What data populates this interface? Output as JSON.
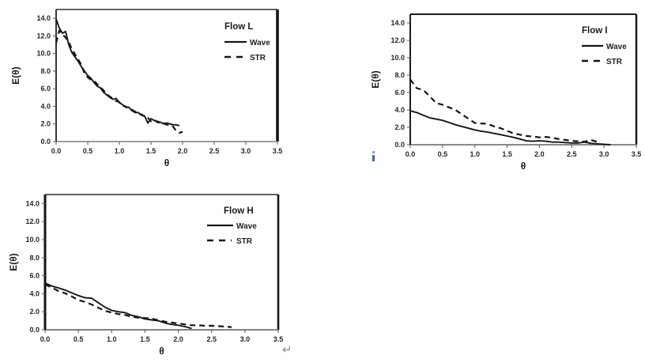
{
  "page": {
    "background": "#ffffff",
    "line_color": "#161616",
    "tick_text_color": "#262626"
  },
  "marks": {
    "line_break_symbol": "↵"
  },
  "chart_data": [
    {
      "type": "line",
      "title": "Flow L",
      "xlabel": "θ",
      "ylabel": "E(θ)",
      "xlim": [
        0,
        3.5
      ],
      "ylim": [
        0,
        15
      ],
      "grid": false,
      "legend_position": "top-right-inside",
      "x_tick_labels": [
        "0.0",
        "0.5",
        "1.0",
        "1.5",
        "2.0",
        "2.5",
        "3.0",
        "3.5"
      ],
      "y_tick_labels": [
        "0.0",
        "2.0",
        "4.0",
        "6.0",
        "8.0",
        "10.0",
        "12.0",
        "14.0"
      ],
      "series": [
        {
          "name": "Wave",
          "style": "solid",
          "x": [
            0,
            0.05,
            0.1,
            0.15,
            0.2,
            0.25,
            0.3,
            0.35,
            0.4,
            0.45,
            0.5,
            0.55,
            0.6,
            0.65,
            0.7,
            0.75,
            0.8,
            0.85,
            0.9,
            0.95,
            1.0,
            1.05,
            1.1,
            1.15,
            1.2,
            1.25,
            1.3,
            1.35,
            1.4,
            1.45,
            1.5,
            1.55,
            1.6,
            1.65,
            1.7,
            1.75,
            1.8,
            1.85,
            1.9,
            1.95
          ],
          "values": [
            13.9,
            12.9,
            12.3,
            12.5,
            11.0,
            10.1,
            9.6,
            9.1,
            8.5,
            8.0,
            7.5,
            7.2,
            6.7,
            6.3,
            6.1,
            5.6,
            5.3,
            5.0,
            4.8,
            4.9,
            4.4,
            4.2,
            3.9,
            3.9,
            3.5,
            3.3,
            3.3,
            3.0,
            2.9,
            2.1,
            2.6,
            2.4,
            2.3,
            2.2,
            2.0,
            2.1,
            2.0,
            1.9,
            1.9,
            1.8
          ]
        },
        {
          "name": "STR",
          "style": "dashed",
          "x": [
            0,
            0.05,
            0.1,
            0.15,
            0.2,
            0.25,
            0.3,
            0.35,
            0.4,
            0.45,
            0.5,
            0.55,
            0.6,
            0.65,
            0.7,
            0.75,
            0.8,
            0.85,
            0.9,
            0.95,
            1.0,
            1.05,
            1.1,
            1.15,
            1.2,
            1.25,
            1.3,
            1.35,
            1.4,
            1.45,
            1.5,
            1.55,
            1.6,
            1.65,
            1.7,
            1.75,
            1.8,
            1.85,
            1.9,
            1.95,
            2.0
          ],
          "values": [
            11.2,
            12.6,
            12.2,
            11.8,
            11.3,
            10.5,
            9.9,
            9.3,
            8.7,
            7.7,
            7.3,
            7.0,
            6.9,
            6.5,
            6.2,
            5.8,
            5.4,
            5.1,
            4.9,
            4.6,
            4.5,
            4.1,
            4.0,
            3.7,
            3.6,
            3.4,
            3.1,
            3.1,
            2.8,
            2.7,
            2.3,
            2.5,
            2.2,
            2.1,
            2.1,
            1.9,
            1.9,
            1.7,
            1.2,
            1.0,
            1.1
          ]
        }
      ]
    },
    {
      "type": "line",
      "title": "Flow I",
      "xlabel": "θ",
      "ylabel": "E(θ)",
      "xlim": [
        0,
        3.5
      ],
      "ylim": [
        0,
        15
      ],
      "grid": false,
      "legend_position": "top-right-inside",
      "x_tick_labels": [
        "0.0",
        "0.5",
        "1.0",
        "1.5",
        "2.0",
        "2.5",
        "3.0",
        "3.5"
      ],
      "y_tick_labels": [
        "0.0",
        "2.0",
        "4.0",
        "6.0",
        "8.0",
        "10.0",
        "12.0",
        "14.0"
      ],
      "series": [
        {
          "name": "Wave",
          "style": "solid",
          "x": [
            0,
            0.1,
            0.2,
            0.3,
            0.4,
            0.5,
            0.6,
            0.7,
            0.8,
            0.9,
            1.0,
            1.1,
            1.2,
            1.3,
            1.4,
            1.5,
            1.6,
            1.7,
            1.8,
            1.9,
            2.0,
            2.1,
            2.2,
            2.3,
            2.4,
            2.5,
            2.6,
            2.7,
            2.8,
            2.9,
            3.0,
            3.1
          ],
          "values": [
            3.9,
            3.7,
            3.4,
            3.1,
            2.95,
            2.8,
            2.55,
            2.3,
            2.1,
            1.9,
            1.7,
            1.55,
            1.45,
            1.3,
            1.15,
            1.0,
            0.85,
            0.65,
            0.45,
            0.4,
            0.45,
            0.4,
            0.3,
            0.3,
            0.25,
            0.2,
            0.2,
            0.3,
            0.15,
            0.1,
            0.05,
            0.0
          ]
        },
        {
          "name": "STR",
          "style": "dashed",
          "x": [
            0,
            0.1,
            0.2,
            0.3,
            0.4,
            0.5,
            0.6,
            0.7,
            0.8,
            0.9,
            1.0,
            1.1,
            1.2,
            1.3,
            1.4,
            1.5,
            1.6,
            1.7,
            1.8,
            1.9,
            2.0,
            2.1,
            2.2,
            2.3,
            2.4,
            2.5,
            2.6,
            2.7,
            2.8,
            2.9
          ],
          "values": [
            7.5,
            6.5,
            6.3,
            5.6,
            4.8,
            4.6,
            4.3,
            4.0,
            3.5,
            3.0,
            2.5,
            2.45,
            2.4,
            2.1,
            1.9,
            1.6,
            1.3,
            1.15,
            1.0,
            0.95,
            0.85,
            0.9,
            0.8,
            0.65,
            0.55,
            0.45,
            0.4,
            0.35,
            0.55,
            0.3
          ]
        }
      ]
    },
    {
      "type": "line",
      "title": "Flow H",
      "xlabel": "θ",
      "ylabel": "E(θ)",
      "xlim": [
        0,
        3.5
      ],
      "ylim": [
        0,
        15
      ],
      "grid": false,
      "legend_position": "top-right-inside",
      "x_tick_labels": [
        "0.0",
        "0.5",
        "1.0",
        "1.5",
        "2.0",
        "2.5",
        "3.0",
        "3.5"
      ],
      "y_tick_labels": [
        "0.0",
        "2.0",
        "4.0",
        "6.0",
        "8.0",
        "10.0",
        "12.0",
        "14.0"
      ],
      "series": [
        {
          "name": "Wave",
          "style": "solid",
          "x": [
            0,
            0.1,
            0.2,
            0.3,
            0.4,
            0.5,
            0.6,
            0.7,
            0.8,
            0.9,
            1.0,
            1.1,
            1.2,
            1.3,
            1.4,
            1.5,
            1.6,
            1.7,
            1.8,
            1.9,
            2.0,
            2.1,
            2.2
          ],
          "values": [
            5.2,
            4.85,
            4.65,
            4.4,
            4.1,
            3.8,
            3.55,
            3.5,
            3.0,
            2.5,
            2.15,
            2.0,
            1.9,
            1.6,
            1.45,
            1.2,
            1.1,
            1.0,
            0.75,
            0.6,
            0.5,
            0.35,
            0.15
          ]
        },
        {
          "name": "STR",
          "style": "dashed",
          "x": [
            0,
            0.1,
            0.2,
            0.3,
            0.4,
            0.5,
            0.6,
            0.7,
            0.8,
            0.9,
            1.0,
            1.1,
            1.2,
            1.3,
            1.4,
            1.5,
            1.6,
            1.7,
            1.8,
            1.9,
            2.0,
            2.1,
            2.2,
            2.3,
            2.4,
            2.5,
            2.6,
            2.7,
            2.8
          ],
          "values": [
            5.0,
            4.7,
            4.3,
            4.05,
            3.7,
            3.3,
            3.1,
            2.8,
            2.45,
            2.1,
            1.9,
            1.75,
            1.65,
            1.45,
            1.35,
            1.3,
            1.25,
            1.05,
            0.9,
            0.8,
            0.7,
            0.6,
            0.5,
            0.5,
            0.45,
            0.45,
            0.4,
            0.35,
            0.3
          ]
        }
      ]
    }
  ]
}
